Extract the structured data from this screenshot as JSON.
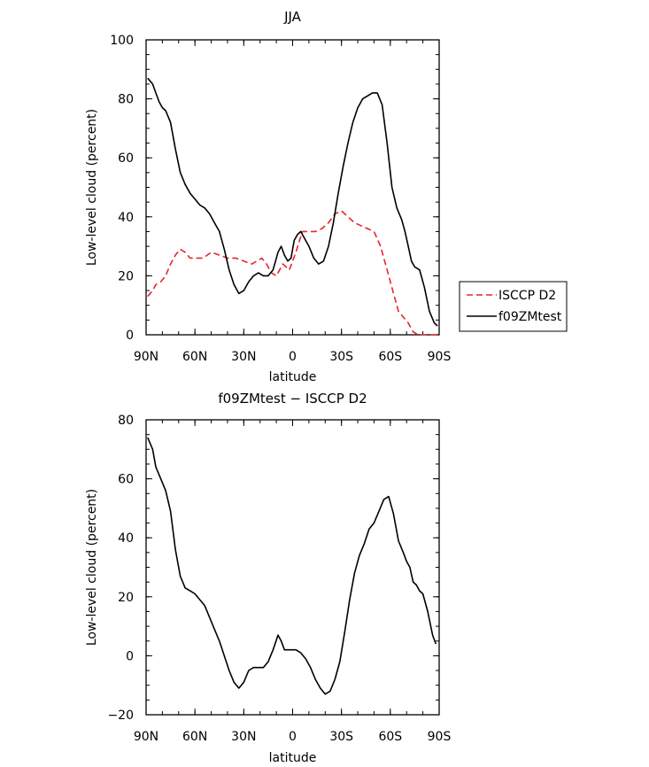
{
  "chart_data": [
    {
      "type": "line",
      "title": "JJA",
      "xlabel": "latitude",
      "ylabel": "Low-level cloud (percent)",
      "xlim": [
        90,
        -90
      ],
      "ylim": [
        0,
        100
      ],
      "x_ticks": [
        {
          "value": 90,
          "label": "90N"
        },
        {
          "value": 60,
          "label": "60N"
        },
        {
          "value": 30,
          "label": "30N"
        },
        {
          "value": 0,
          "label": "0"
        },
        {
          "value": -30,
          "label": "30S"
        },
        {
          "value": -60,
          "label": "60S"
        },
        {
          "value": -90,
          "label": "90S"
        }
      ],
      "y_ticks": [
        0,
        20,
        40,
        60,
        80,
        100
      ],
      "grid": false,
      "legend_position": "right-middle",
      "series": [
        {
          "name": "ISCCP D2",
          "color": "#e8242b",
          "dash": "dashed",
          "x": [
            89,
            86,
            84,
            81,
            78,
            75,
            72,
            69,
            66,
            63,
            60,
            55,
            50,
            45,
            40,
            35,
            30,
            25,
            22,
            19,
            16,
            13,
            10,
            6,
            2,
            -2,
            -6,
            -10,
            -14,
            -18,
            -22,
            -26,
            -30,
            -34,
            -38,
            -42,
            -46,
            -50,
            -54,
            -58,
            -62,
            -65,
            -68,
            -71,
            -74,
            -77,
            -80,
            -83,
            -86,
            -89
          ],
          "y": [
            13,
            15,
            17,
            18,
            20,
            24,
            27,
            29,
            28,
            26,
            26,
            26,
            28,
            27,
            26,
            26,
            25,
            24,
            25,
            26,
            24,
            21,
            20,
            24,
            22,
            28,
            35,
            35,
            35,
            36,
            38,
            41,
            42,
            40,
            38,
            37,
            36,
            35,
            30,
            22,
            14,
            8,
            6,
            4,
            1,
            0,
            0,
            0,
            0,
            0
          ]
        },
        {
          "name": "f09ZMtest",
          "color": "#000000",
          "dash": "solid",
          "x": [
            89,
            86,
            84,
            82,
            80,
            78,
            75,
            72,
            69,
            66,
            63,
            60,
            57,
            54,
            51,
            48,
            45,
            42,
            39,
            36,
            33,
            30,
            27,
            24,
            21,
            18,
            15,
            12,
            9,
            7,
            5,
            3,
            1,
            -1,
            -3,
            -5,
            -7,
            -10,
            -13,
            -16,
            -19,
            -22,
            -25,
            -28,
            -31,
            -34,
            -37,
            -40,
            -43,
            -46,
            -49,
            -52,
            -55,
            -58,
            -61,
            -64,
            -67,
            -69,
            -71,
            -73,
            -75,
            -78,
            -81,
            -84,
            -87,
            -89
          ],
          "y": [
            87,
            85,
            82,
            79,
            77,
            76,
            72,
            63,
            55,
            51,
            48,
            46,
            44,
            43,
            41,
            38,
            35,
            29,
            22,
            17,
            14,
            15,
            18,
            20,
            21,
            20,
            20,
            22,
            28,
            30,
            27,
            25,
            26,
            32,
            34,
            35,
            33,
            30,
            26,
            24,
            25,
            30,
            38,
            48,
            57,
            65,
            72,
            77,
            80,
            81,
            82,
            82,
            78,
            65,
            50,
            43,
            39,
            35,
            30,
            25,
            23,
            22,
            16,
            8,
            4,
            3
          ]
        }
      ]
    },
    {
      "type": "line",
      "title": "f09ZMtest − ISCCP D2",
      "xlabel": "latitude",
      "ylabel": "Low-level cloud (percent)",
      "xlim": [
        90,
        -90
      ],
      "ylim": [
        -20,
        80
      ],
      "x_ticks": [
        {
          "value": 90,
          "label": "90N"
        },
        {
          "value": 60,
          "label": "60N"
        },
        {
          "value": 30,
          "label": "30N"
        },
        {
          "value": 0,
          "label": "0"
        },
        {
          "value": -30,
          "label": "30S"
        },
        {
          "value": -60,
          "label": "60S"
        },
        {
          "value": -90,
          "label": "90S"
        }
      ],
      "y_ticks": [
        -20,
        0,
        20,
        40,
        60,
        80
      ],
      "grid": false,
      "series": [
        {
          "color": "#000000",
          "dash": "solid",
          "x": [
            89,
            86,
            84,
            81,
            78,
            75,
            72,
            69,
            66,
            63,
            60,
            57,
            54,
            51,
            48,
            45,
            42,
            39,
            36,
            33,
            30,
            27,
            24,
            21,
            18,
            15,
            12,
            9,
            7,
            5,
            3,
            1,
            -2,
            -5,
            -8,
            -11,
            -14,
            -17,
            -20,
            -23,
            -26,
            -29,
            -32,
            -35,
            -38,
            -41,
            -44,
            -47,
            -50,
            -53,
            -56,
            -59,
            -62,
            -65,
            -68,
            -70,
            -72,
            -74,
            -76,
            -78,
            -80,
            -83,
            -86,
            -88
          ],
          "y": [
            74,
            70,
            64,
            60,
            56,
            49,
            36,
            27,
            23,
            22,
            21,
            19,
            17,
            13,
            9,
            5,
            0,
            -5,
            -9,
            -11,
            -9,
            -5,
            -4,
            -4,
            -4,
            -2,
            2,
            7,
            5,
            2,
            2,
            2,
            2,
            1,
            -1,
            -4,
            -8,
            -11,
            -13,
            -12,
            -8,
            -2,
            8,
            19,
            28,
            34,
            38,
            43,
            45,
            49,
            53,
            54,
            48,
            39,
            35,
            32,
            30,
            25,
            24,
            22,
            21,
            15,
            7,
            4
          ]
        }
      ]
    }
  ]
}
